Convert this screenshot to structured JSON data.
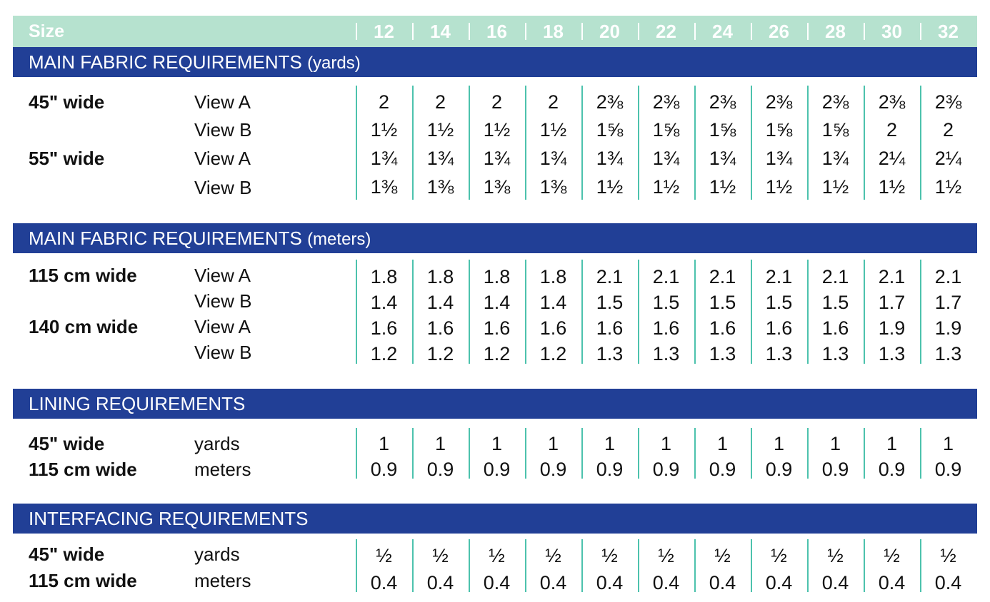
{
  "sizes": {
    "label": "Size",
    "values": [
      "12",
      "14",
      "16",
      "18",
      "20",
      "22",
      "24",
      "26",
      "28",
      "30",
      "32"
    ]
  },
  "colors": {
    "header_bar": "#b6e2cf",
    "section_bar": "#213f96",
    "divider": "#4cc2ad"
  },
  "sections": [
    {
      "title": "MAIN FABRIC REQUIREMENTS",
      "unit": "(yards)",
      "rows": [
        {
          "width": "45\" wide",
          "view": "View A",
          "values": [
            "2",
            "2",
            "2",
            "2",
            "2⅜",
            "2⅜",
            "2⅜",
            "2⅜",
            "2⅜",
            "2⅜",
            "2⅜"
          ]
        },
        {
          "width": "",
          "view": "View B",
          "values": [
            "1½",
            "1½",
            "1½",
            "1½",
            "1⅝",
            "1⅝",
            "1⅝",
            "1⅝",
            "1⅝",
            "2",
            "2"
          ]
        },
        {
          "width": "55\" wide",
          "view": "View A",
          "values": [
            "1¾",
            "1¾",
            "1¾",
            "1¾",
            "1¾",
            "1¾",
            "1¾",
            "1¾",
            "1¾",
            "2¼",
            "2¼"
          ]
        },
        {
          "width": "",
          "view": "View B",
          "values": [
            "1⅜",
            "1⅜",
            "1⅜",
            "1⅜",
            "1½",
            "1½",
            "1½",
            "1½",
            "1½",
            "1½",
            "1½"
          ]
        }
      ]
    },
    {
      "title": "MAIN FABRIC REQUIREMENTS",
      "unit": "(meters)",
      "rows": [
        {
          "width": "115 cm wide",
          "view": "View A",
          "values": [
            "1.8",
            "1.8",
            "1.8",
            "1.8",
            "2.1",
            "2.1",
            "2.1",
            "2.1",
            "2.1",
            "2.1",
            "2.1"
          ]
        },
        {
          "width": "",
          "view": "View B",
          "values": [
            "1.4",
            "1.4",
            "1.4",
            "1.4",
            "1.5",
            "1.5",
            "1.5",
            "1.5",
            "1.5",
            "1.7",
            "1.7"
          ]
        },
        {
          "width": "140 cm wide",
          "view": "View A",
          "values": [
            "1.6",
            "1.6",
            "1.6",
            "1.6",
            "1.6",
            "1.6",
            "1.6",
            "1.6",
            "1.6",
            "1.9",
            "1.9"
          ]
        },
        {
          "width": "",
          "view": "View B",
          "values": [
            "1.2",
            "1.2",
            "1.2",
            "1.2",
            "1.3",
            "1.3",
            "1.3",
            "1.3",
            "1.3",
            "1.3",
            "1.3"
          ]
        }
      ]
    },
    {
      "title": "LINING REQUIREMENTS",
      "unit": "",
      "rows": [
        {
          "width": "45\" wide",
          "view": "yards",
          "values": [
            "1",
            "1",
            "1",
            "1",
            "1",
            "1",
            "1",
            "1",
            "1",
            "1",
            "1"
          ]
        },
        {
          "width": "115 cm wide",
          "view": "meters",
          "values": [
            "0.9",
            "0.9",
            "0.9",
            "0.9",
            "0.9",
            "0.9",
            "0.9",
            "0.9",
            "0.9",
            "0.9",
            "0.9"
          ]
        }
      ]
    },
    {
      "title": "INTERFACING REQUIREMENTS",
      "unit": "",
      "rows": [
        {
          "width": "45\" wide",
          "view": "yards",
          "values": [
            "½",
            "½",
            "½",
            "½",
            "½",
            "½",
            "½",
            "½",
            "½",
            "½",
            "½"
          ]
        },
        {
          "width": "115 cm wide",
          "view": "meters",
          "values": [
            "0.4",
            "0.4",
            "0.4",
            "0.4",
            "0.4",
            "0.4",
            "0.4",
            "0.4",
            "0.4",
            "0.4",
            "0.4"
          ]
        }
      ]
    }
  ]
}
